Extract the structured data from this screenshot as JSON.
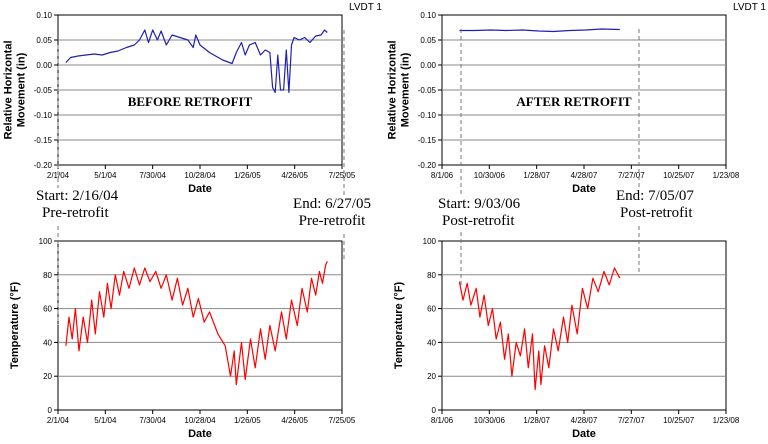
{
  "chart_data": [
    {
      "id": "before-movement",
      "type": "line",
      "tag": "LVDT 1",
      "title": "",
      "overlay_label": "BEFORE RETROFIT",
      "xlabel": "Date",
      "ylabel": "Relative Horizontal Movement (in)",
      "ylabel_lines": [
        "Relative Horizontal",
        "Movement (in)"
      ],
      "x_ticks": [
        "2/1/04",
        "5/1/04",
        "7/30/04",
        "10/28/04",
        "1/26/05",
        "4/26/05",
        "7/25/05"
      ],
      "xlim": [
        "2004-02-01",
        "2005-07-25"
      ],
      "y_ticks": [
        "0.10",
        "0.05",
        "0.00",
        "-0.05",
        "-0.10",
        "-0.15",
        "-0.20"
      ],
      "ylim": [
        -0.2,
        0.1
      ],
      "grid": "horizontal",
      "series": [
        {
          "color": "#1f1fb4",
          "points": [
            [
              "2004-02-16",
              0.005
            ],
            [
              "2004-02-25",
              0.015
            ],
            [
              "2004-03-10",
              0.018
            ],
            [
              "2004-03-25",
              0.02
            ],
            [
              "2004-04-10",
              0.022
            ],
            [
              "2004-04-25",
              0.02
            ],
            [
              "2004-05-10",
              0.025
            ],
            [
              "2004-05-25",
              0.028
            ],
            [
              "2004-06-10",
              0.035
            ],
            [
              "2004-06-25",
              0.04
            ],
            [
              "2004-07-05",
              0.05
            ],
            [
              "2004-07-15",
              0.07
            ],
            [
              "2004-07-22",
              0.045
            ],
            [
              "2004-07-30",
              0.07
            ],
            [
              "2004-08-08",
              0.05
            ],
            [
              "2004-08-15",
              0.068
            ],
            [
              "2004-08-25",
              0.04
            ],
            [
              "2004-09-05",
              0.06
            ],
            [
              "2004-09-20",
              0.055
            ],
            [
              "2004-10-05",
              0.05
            ],
            [
              "2004-10-15",
              0.035
            ],
            [
              "2004-10-20",
              0.06
            ],
            [
              "2004-10-28",
              0.04
            ],
            [
              "2004-11-15",
              0.025
            ],
            [
              "2004-12-10",
              0.01
            ],
            [
              "2004-12-28",
              0.003
            ],
            [
              "2005-01-05",
              0.025
            ],
            [
              "2005-01-15",
              0.045
            ],
            [
              "2005-01-22",
              0.02
            ],
            [
              "2005-01-30",
              0.04
            ],
            [
              "2005-02-10",
              0.045
            ],
            [
              "2005-02-20",
              0.02
            ],
            [
              "2005-03-01",
              0.03
            ],
            [
              "2005-03-10",
              0.025
            ],
            [
              "2005-03-15",
              -0.045
            ],
            [
              "2005-03-20",
              -0.055
            ],
            [
              "2005-03-25",
              0.02
            ],
            [
              "2005-03-30",
              -0.05
            ],
            [
              "2005-04-05",
              -0.05
            ],
            [
              "2005-04-10",
              0.03
            ],
            [
              "2005-04-15",
              -0.055
            ],
            [
              "2005-04-20",
              0.04
            ],
            [
              "2005-04-25",
              0.055
            ],
            [
              "2005-05-05",
              0.05
            ],
            [
              "2005-05-15",
              0.055
            ],
            [
              "2005-05-25",
              0.045
            ],
            [
              "2005-06-05",
              0.058
            ],
            [
              "2005-06-15",
              0.06
            ],
            [
              "2005-06-22",
              0.07
            ],
            [
              "2005-06-27",
              0.065
            ]
          ]
        }
      ]
    },
    {
      "id": "after-movement",
      "type": "line",
      "tag": "LVDT 1",
      "title": "",
      "overlay_label": "AFTER RETROFIT",
      "xlabel": "Date",
      "ylabel": "Relative Horizontal Movement (in)",
      "ylabel_lines": [
        "Relative Horizontal",
        "Movement (in)"
      ],
      "x_ticks": [
        "8/1/06",
        "10/30/06",
        "1/28/07",
        "4/28/07",
        "7/27/07",
        "10/25/07",
        "1/23/08"
      ],
      "xlim": [
        "2006-08-01",
        "2008-01-23"
      ],
      "y_ticks": [
        "0.10",
        "0.05",
        "0.00",
        "-0.05",
        "-0.10",
        "-0.15",
        "-0.20"
      ],
      "ylim": [
        -0.2,
        0.1
      ],
      "grid": "horizontal",
      "series": [
        {
          "color": "#1f1fb4",
          "points": [
            [
              "2006-09-03",
              0.069
            ],
            [
              "2006-10-01",
              0.069
            ],
            [
              "2006-11-01",
              0.07
            ],
            [
              "2006-12-01",
              0.069
            ],
            [
              "2007-01-01",
              0.07
            ],
            [
              "2007-02-01",
              0.068
            ],
            [
              "2007-03-01",
              0.067
            ],
            [
              "2007-04-01",
              0.069
            ],
            [
              "2007-05-01",
              0.07
            ],
            [
              "2007-06-01",
              0.072
            ],
            [
              "2007-07-05",
              0.071
            ]
          ]
        }
      ]
    },
    {
      "id": "before-temperature",
      "type": "line",
      "tag": "",
      "title": "",
      "overlay_label": "",
      "xlabel": "Date",
      "ylabel": "Temperature (°F)",
      "ylabel_lines": [
        "Temperature (°F)"
      ],
      "x_ticks": [
        "2/1/04",
        "5/1/04",
        "7/30/04",
        "10/28/04",
        "1/26/05",
        "4/26/05",
        "7/25/05"
      ],
      "xlim": [
        "2004-02-01",
        "2005-07-25"
      ],
      "y_ticks": [
        "100",
        "80",
        "60",
        "40",
        "20",
        "0"
      ],
      "ylim": [
        0,
        100
      ],
      "grid": "horizontal",
      "series": [
        {
          "color": "#ff0000",
          "points": [
            [
              "2004-02-16",
              38
            ],
            [
              "2004-02-22",
              55
            ],
            [
              "2004-02-28",
              42
            ],
            [
              "2004-03-05",
              60
            ],
            [
              "2004-03-12",
              35
            ],
            [
              "2004-03-20",
              55
            ],
            [
              "2004-03-28",
              40
            ],
            [
              "2004-04-05",
              65
            ],
            [
              "2004-04-12",
              45
            ],
            [
              "2004-04-20",
              70
            ],
            [
              "2004-04-28",
              55
            ],
            [
              "2004-05-05",
              75
            ],
            [
              "2004-05-12",
              60
            ],
            [
              "2004-05-20",
              80
            ],
            [
              "2004-05-28",
              68
            ],
            [
              "2004-06-05",
              82
            ],
            [
              "2004-06-15",
              72
            ],
            [
              "2004-06-25",
              84
            ],
            [
              "2004-07-05",
              74
            ],
            [
              "2004-07-15",
              84
            ],
            [
              "2004-07-25",
              76
            ],
            [
              "2004-08-05",
              82
            ],
            [
              "2004-08-15",
              72
            ],
            [
              "2004-08-25",
              80
            ],
            [
              "2004-09-05",
              65
            ],
            [
              "2004-09-15",
              78
            ],
            [
              "2004-09-25",
              62
            ],
            [
              "2004-10-05",
              72
            ],
            [
              "2004-10-15",
              55
            ],
            [
              "2004-10-25",
              66
            ],
            [
              "2004-11-05",
              52
            ],
            [
              "2004-11-15",
              58
            ],
            [
              "2004-12-01",
              45
            ],
            [
              "2004-12-15",
              38
            ],
            [
              "2004-12-25",
              20
            ],
            [
              "2005-01-01",
              35
            ],
            [
              "2005-01-05",
              15
            ],
            [
              "2005-01-15",
              40
            ],
            [
              "2005-01-22",
              18
            ],
            [
              "2005-02-01",
              42
            ],
            [
              "2005-02-10",
              25
            ],
            [
              "2005-02-20",
              48
            ],
            [
              "2005-03-01",
              30
            ],
            [
              "2005-03-10",
              50
            ],
            [
              "2005-03-20",
              35
            ],
            [
              "2005-04-01",
              58
            ],
            [
              "2005-04-10",
              42
            ],
            [
              "2005-04-20",
              65
            ],
            [
              "2005-05-01",
              50
            ],
            [
              "2005-05-10",
              72
            ],
            [
              "2005-05-20",
              58
            ],
            [
              "2005-05-28",
              78
            ],
            [
              "2005-06-05",
              68
            ],
            [
              "2005-06-12",
              82
            ],
            [
              "2005-06-18",
              75
            ],
            [
              "2005-06-24",
              86
            ],
            [
              "2005-06-27",
              88
            ]
          ]
        }
      ]
    },
    {
      "id": "after-temperature",
      "type": "line",
      "tag": "",
      "title": "",
      "overlay_label": "",
      "xlabel": "Date",
      "ylabel": "Temperature (°F)",
      "ylabel_lines": [
        "Temperature (°F)"
      ],
      "x_ticks": [
        "8/1/06",
        "10/30/06",
        "1/28/07",
        "4/28/07",
        "7/27/07",
        "10/25/07",
        "1/23/08"
      ],
      "xlim": [
        "2006-08-01",
        "2008-01-23"
      ],
      "y_ticks": [
        "100",
        "80",
        "60",
        "40",
        "20",
        "0"
      ],
      "ylim": [
        0,
        100
      ],
      "grid": "horizontal",
      "series": [
        {
          "color": "#ff0000",
          "points": [
            [
              "2006-09-03",
              76
            ],
            [
              "2006-09-10",
              65
            ],
            [
              "2006-09-18",
              75
            ],
            [
              "2006-09-25",
              62
            ],
            [
              "2006-10-05",
              72
            ],
            [
              "2006-10-12",
              55
            ],
            [
              "2006-10-20",
              68
            ],
            [
              "2006-10-28",
              50
            ],
            [
              "2006-11-05",
              60
            ],
            [
              "2006-11-12",
              42
            ],
            [
              "2006-11-20",
              52
            ],
            [
              "2006-11-28",
              30
            ],
            [
              "2006-12-05",
              45
            ],
            [
              "2006-12-12",
              20
            ],
            [
              "2006-12-20",
              40
            ],
            [
              "2006-12-28",
              32
            ],
            [
              "2007-01-05",
              48
            ],
            [
              "2007-01-12",
              25
            ],
            [
              "2007-01-20",
              45
            ],
            [
              "2007-01-25",
              12
            ],
            [
              "2007-02-01",
              35
            ],
            [
              "2007-02-05",
              15
            ],
            [
              "2007-02-12",
              38
            ],
            [
              "2007-02-20",
              25
            ],
            [
              "2007-03-01",
              48
            ],
            [
              "2007-03-10",
              35
            ],
            [
              "2007-03-20",
              55
            ],
            [
              "2007-03-28",
              40
            ],
            [
              "2007-04-05",
              62
            ],
            [
              "2007-04-15",
              45
            ],
            [
              "2007-04-25",
              72
            ],
            [
              "2007-05-05",
              60
            ],
            [
              "2007-05-15",
              78
            ],
            [
              "2007-05-25",
              70
            ],
            [
              "2007-06-05",
              82
            ],
            [
              "2007-06-15",
              74
            ],
            [
              "2007-06-25",
              84
            ],
            [
              "2007-07-05",
              78
            ]
          ]
        }
      ]
    }
  ],
  "annotations": {
    "before_start": [
      "Start: 2/16/04",
      "Pre-retrofit"
    ],
    "before_end": [
      "End: 6/27/05",
      "Pre-retrofit"
    ],
    "after_start": [
      "Start: 9/03/06",
      "Post-retrofit"
    ],
    "after_end": [
      "End: 7/05/07",
      "Post-retrofit"
    ]
  }
}
